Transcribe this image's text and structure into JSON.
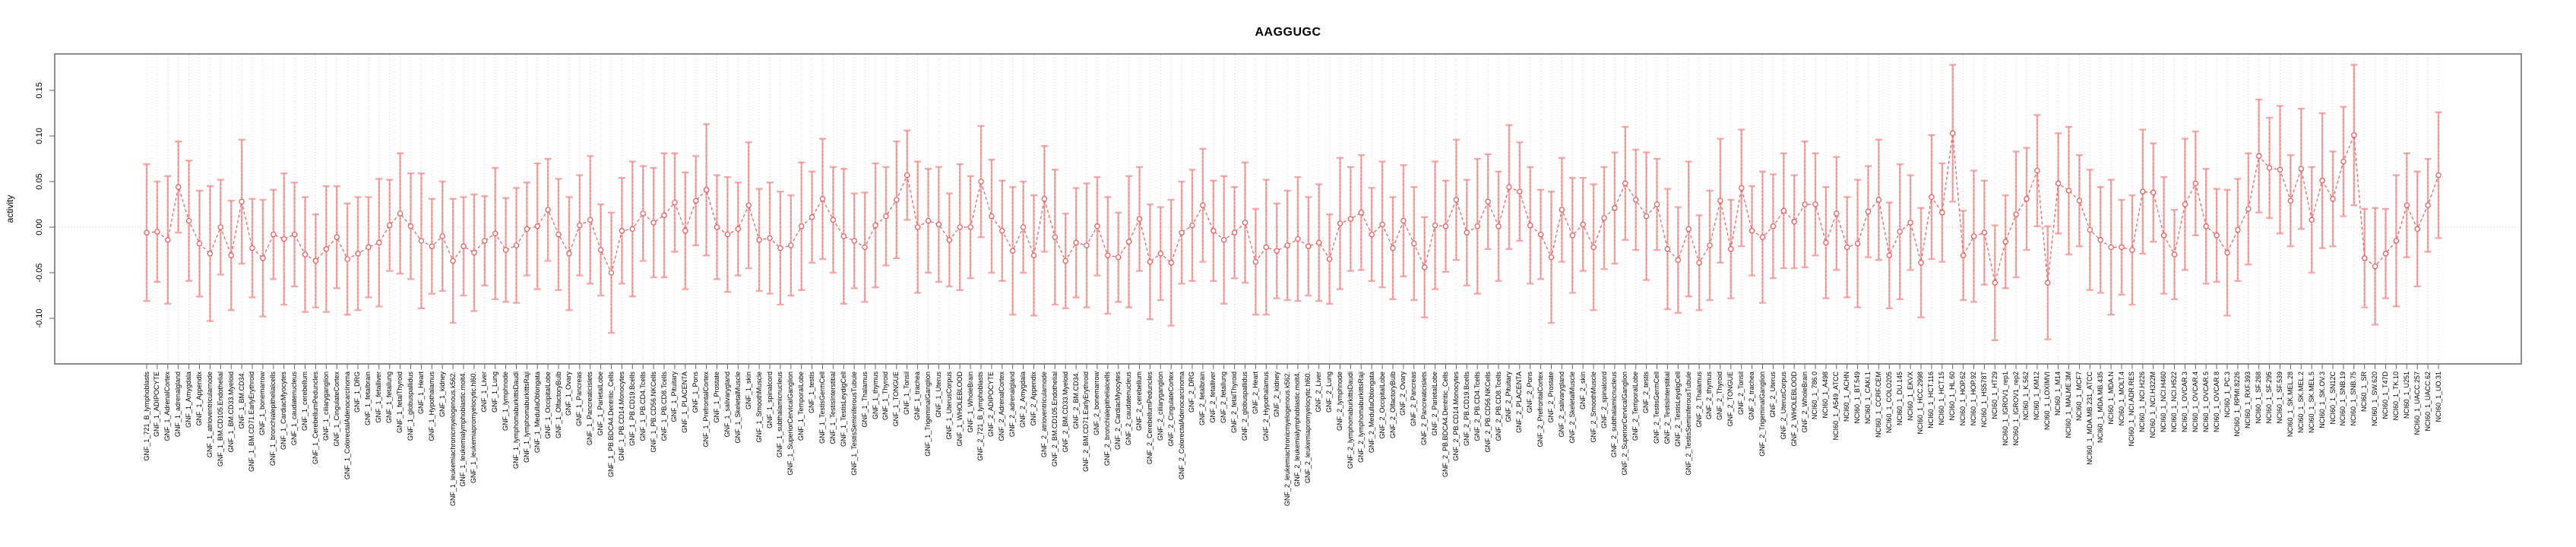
{
  "title": "AAGGUGC",
  "y_axis": {
    "label": "activity",
    "tick_labels": [
      "0.15",
      "0.10",
      "0.05",
      "0.00",
      "-0.05",
      "-0.10"
    ],
    "tick_values": [
      0.15,
      0.1,
      0.05,
      0.0,
      -0.05,
      -0.1
    ]
  },
  "colors": {
    "point": "#ef5f5f",
    "errorbar": "#f7a9a9",
    "grid": "#d9d9d9",
    "zero_line": "#cfcfcf",
    "box": "#8e8e8e",
    "tick": "#666666"
  },
  "chart_data": {
    "type": "line",
    "subtype": "points-with-error-bars",
    "title": "AAGGUGC",
    "xlabel": "",
    "ylabel": "activity",
    "ylim": [
      -0.15,
      0.19
    ],
    "yticks": [
      0.15,
      0.1,
      0.05,
      0.0,
      -0.05,
      -0.1
    ],
    "grid": "vertical dotted line per category; dotted horizontal line at 0",
    "legend": "none",
    "marker": "open-circle",
    "line_style": "dashed",
    "categories": [
      "GNF_1_721_B_lymphoblasts",
      "GNF_1_ADIPOCYTE",
      "GNF_1_AdrenalCortex",
      "GNF_1_adrenalgland",
      "GNF_1_Amygdala",
      "GNF_1_Appendix",
      "GNF_1_atrioventricularnode",
      "GNF_1_BM.CD105.Endothelial",
      "GNF_1_BM.CD33.Myeloid",
      "GNF_1_BM.CD34.",
      "GNF_1_BM.CD71.EarlyErythroid",
      "GNF_1_bonemarrow",
      "GNF_1_bronchialepithelialcells",
      "GNF_1_CardiacMyocytes",
      "GNF_1_caudatenucleus",
      "GNF_1_cerebellum",
      "GNF_1_CerebellumPeduncles",
      "GNF_1_ciliaryganglion",
      "GNF_1_CingulateCortex",
      "GNF_1_ColorectalAdenocarcinoma",
      "GNF_1_DRG",
      "GNF_1_fetalbrain",
      "GNF_1_fetalliver",
      "GNF_1_fetallung",
      "GNF_1_fetalThyroid",
      "GNF_1_globuspallidus",
      "GNF_1_Heart",
      "GNF_1_Hypothalamus",
      "GNF_1_kidney",
      "GNF_1_leukemiachronicmyelogenous.k562.",
      "GNF_1_leukemialymphoblastic.molt4.",
      "GNF_1_leukemiapromyelocytic.hl60.",
      "GNF_1_Liver",
      "GNF_1_Lung",
      "GNF_1_lymphnode",
      "GNF_1_lymphomaburkittsDaudi",
      "GNF_1_lymphomaburkittsRaji",
      "GNF_1_MedullaOblongata",
      "GNF_1_OccipitalLobe",
      "GNF_1_OlfactoryBulb",
      "GNF_1_Ovary",
      "GNF_1_Pancreas",
      "GNF_1_Pancreaticislets",
      "GNF_1_ParietalLobe",
      "GNF_1_PB.BDCA4.Dentritic_Cells",
      "GNF_1_PB.CD14.Monocytes",
      "GNF_1_PB.CD19.Bcells",
      "GNF_1_PB.CD4.Tcells",
      "GNF_1_PB.CD56.NKCells",
      "GNF_1_PB.CD8.Tcells",
      "GNF_1_Pituitary",
      "GNF_1_PLACENTA",
      "GNF_1_Pons",
      "GNF_1_PrefrontalCortex",
      "GNF_1_Prostate",
      "GNF_1_salivarygland",
      "GNF_1_SkeletalMuscle",
      "GNF_1_skin",
      "GNF_1_SmoothMuscle",
      "GNF_1_spinalcord",
      "GNF_1_subthalamicnucleus",
      "GNF_1_SuperiorCervicalGanglion",
      "GNF_1_TemporalLobe",
      "GNF_1_testis",
      "GNF_1_TestisGermCell",
      "GNF_1_TestisInterstitial",
      "GNF_1_TestisLeydigCell",
      "GNF_1_TestisSeminiferousTubule",
      "GNF_1_Thalamus",
      "GNF_1_thymus",
      "GNF_1_Thyroid",
      "GNF_1_TONGUE",
      "GNF_1_Tonsil",
      "GNF_1_trachea",
      "GNF_1_TrigeminalGanglion",
      "GNF_1_Uterus",
      "GNF_1_UterusCorpus",
      "GNF_1_WHOLEBLOOD",
      "GNF_1_WholeBrain",
      "GNF_2_721_B_lymphoblasts",
      "GNF_2_ADIPOCYTE",
      "GNF_2_AdrenalCortex",
      "GNF_2_adrenalgland",
      "GNF_2_Amygdala",
      "GNF_2_Appendix",
      "GNF_2_atrioventricularnode",
      "GNF_2_BM.CD105.Endothelial",
      "GNF_2_BM.CD33.Myeloid",
      "GNF_2_BM.CD34.",
      "GNF_2_BM.CD71.EarlyErythroid",
      "GNF_2_bonemarrow",
      "GNF_2_bronchialepithelialcells",
      "GNF_2_CardiacMyocytes",
      "GNF_2_caudatenucleus",
      "GNF_2_cerebellum",
      "GNF_2_CerebellumPeduncles",
      "GNF_2_ciliaryganglion",
      "GNF_2_CingulateCortex",
      "GNF_2_ColorectalAdenocarcinoma",
      "GNF_2_DRG",
      "GNF_2_fetalbrain",
      "GNF_2_fetalliver",
      "GNF_2_fetallung",
      "GNF_2_fetalThyroid",
      "GNF_2_globuspallidus",
      "GNF_2_Heart",
      "GNF_2_Hypothalamus",
      "GNF_2_kidney",
      "GNF_2_leukemiachronicmyelogenous.k562.",
      "GNF_2_leukemialymphoblastic.molt4.",
      "GNF_2_leukemiapromyelocytic.hl60.",
      "GNF_2_Liver",
      "GNF_2_Lung",
      "GNF_2_lymphnode",
      "GNF_2_lymphomaburkittsDaudi",
      "GNF_2_lymphomaburkittsRaji",
      "GNF_2_MedullaOblongata",
      "GNF_2_OccipitalLobe",
      "GNF_2_OlfactoryBulb",
      "GNF_2_Ovary",
      "GNF_2_Pancreas",
      "GNF_2_Pancreaticislets",
      "GNF_2_ParietalLobe",
      "GNF_2_PB.BDCA4.Dentritic_Cells",
      "GNF_2_PB.CD14.Monocytes",
      "GNF_2_PB.CD19.Bcells",
      "GNF_2_PB.CD4.Tcells",
      "GNF_2_PB.CD56.NKCells",
      "GNF_2_PB.CD8.Tcells",
      "GNF_2_Pituitary",
      "GNF_2_PLACENTA",
      "GNF_2_Pons",
      "GNF_2_PrefrontalCortex",
      "GNF_2_Prostate",
      "GNF_2_salivarygland",
      "GNF_2_SkeletalMuscle",
      "GNF_2_skin",
      "GNF_2_SmoothMuscle",
      "GNF_2_spinalcord",
      "GNF_2_subthalamicnucleus",
      "GNF_2_SuperiorCervicalGanglion",
      "GNF_2_TemporalLobe",
      "GNF_2_testis",
      "GNF_2_TestisGermCell",
      "GNF_2_TestisInterstitial",
      "GNF_2_TestisLeydigCell",
      "GNF_2_TestisSeminiferousTubule",
      "GNF_2_Thalamus",
      "GNF_2_thymus",
      "GNF_2_Thyroid",
      "GNF_2_TONGUE",
      "GNF_2_Tonsil",
      "GNF_2_trachea",
      "GNF_2_TrigeminalGanglion",
      "GNF_2_Uterus",
      "GNF_2_UterusCorpus",
      "GNF_2_WHOLEBLOOD",
      "GNF_2_WholeBrain",
      "NCI60_1_786.0",
      "NCI60_1_A498",
      "NCI60_1_A549_ATCC",
      "NCI60_1_ACHN",
      "NCI60_1_BT.549",
      "NCI60_1_CAKI.1",
      "NCI60_1_CCRF.CEM",
      "NCI60_1_COLO205",
      "NCI60_1_DU.145",
      "NCI60_1_EKVX",
      "NCI60_1_HCC.2998",
      "NCI60_1_HCT.116",
      "NCI60_1_HCT.15",
      "NCI60_1_HL.60",
      "NCI60_1_HOP.62",
      "NCI60_1_HOP.92",
      "NCI60_1_HS578T",
      "NCI60_1_HT29",
      "NCI60_1_IGROV1_rep1",
      "NCI60_1_IGROV1_rep2",
      "NCI60_1_K.562",
      "NCI60_1_KM12",
      "NCI60_1_LOXIMVI",
      "NCI60_1_M14",
      "NCI60_1_MALME.3M",
      "NCI60_1_MCF7",
      "NCI60_1_MDA.MB.231_ATCC",
      "NCI60_1_MDA.MB.435",
      "NCI60_1_MDA.N",
      "NCI60_1_MOLT.4",
      "NCI60_1_NCI.ADR.RES",
      "NCI60_1_NCI.H226",
      "NCI60_1_NCI.H322M",
      "NCI60_1_NCI.H460",
      "NCI60_1_NCI.H522",
      "NCI60_1_OVCAR.3",
      "NCI60_1_OVCAR.4",
      "NCI60_1_OVCAR.5",
      "NCI60_1_OVCAR.8",
      "NCI60_1_PC.3",
      "NCI60_1_RPMI.8226",
      "NCI60_1_RXF.393",
      "NCI60_1_SF.268",
      "NCI60_1_SF.295",
      "NCI60_1_SF.539",
      "NCI60_1_SK.MEL.28",
      "NCI60_1_SK.MEL.2",
      "NCI60_1_SK.MEL.5",
      "NCI60_1_SK.OV.3",
      "NCI60_1_SN12C",
      "NCI60_1_SNB.19",
      "NCI60_1_SNB.75",
      "NCI60_1_SR",
      "NCI60_1_SW.620",
      "NCI60_1_T47D",
      "NCI60_1_TK.10",
      "NCI60_1_U251",
      "NCI60_1_UACC.257",
      "NCI60_1_UACC.62",
      "NCI60_1_UO.31"
    ],
    "values": [
      -0.006,
      -0.005,
      -0.014,
      0.044,
      0.007,
      -0.018,
      -0.029,
      0.0,
      -0.031,
      0.028,
      -0.023,
      -0.034,
      -0.008,
      -0.013,
      -0.008,
      -0.03,
      -0.037,
      -0.024,
      -0.011,
      -0.035,
      -0.029,
      -0.022,
      -0.017,
      0.002,
      0.015,
      0.001,
      -0.015,
      -0.021,
      -0.01,
      -0.037,
      -0.021,
      -0.028,
      -0.015,
      -0.007,
      -0.025,
      -0.02,
      -0.002,
      0.001,
      0.019,
      -0.008,
      -0.029,
      0.002,
      0.008,
      -0.025,
      -0.05,
      -0.004,
      -0.002,
      0.015,
      0.005,
      0.013,
      0.027,
      -0.004,
      0.029,
      0.041,
      0.0,
      -0.008,
      -0.002,
      0.024,
      -0.014,
      -0.012,
      -0.023,
      -0.02,
      0.001,
      0.011,
      0.031,
      0.008,
      -0.01,
      -0.015,
      -0.022,
      0.002,
      0.012,
      0.03,
      0.057,
      0.0,
      0.007,
      0.003,
      -0.014,
      0.0,
      0.0,
      0.05,
      0.012,
      -0.004,
      -0.026,
      0.0,
      -0.031,
      0.031,
      -0.011,
      -0.037,
      -0.017,
      -0.02,
      0.001,
      -0.031,
      -0.033,
      -0.016,
      0.009,
      -0.038,
      -0.029,
      -0.039,
      -0.006,
      0.002,
      0.024,
      -0.004,
      -0.014,
      -0.006,
      0.005,
      -0.038,
      -0.022,
      -0.026,
      -0.02,
      -0.013,
      -0.021,
      -0.017,
      -0.035,
      0.004,
      0.009,
      0.016,
      -0.008,
      0.003,
      -0.023,
      0.007,
      -0.018,
      -0.044,
      0.002,
      0.001,
      0.03,
      -0.006,
      0.001,
      0.028,
      0.001,
      0.044,
      0.039,
      0.002,
      -0.008,
      -0.033,
      0.019,
      -0.009,
      0.003,
      -0.022,
      0.01,
      0.021,
      0.048,
      0.03,
      0.012,
      0.025,
      -0.024,
      -0.036,
      -0.002,
      -0.039,
      -0.02,
      0.029,
      -0.024,
      0.043,
      -0.004,
      -0.011,
      0.001,
      0.018,
      0.006,
      0.025,
      0.025,
      -0.017,
      0.015,
      -0.022,
      -0.018,
      0.017,
      0.03,
      -0.031,
      -0.005,
      0.005,
      -0.039,
      0.033,
      0.016,
      0.103,
      -0.031,
      -0.01,
      -0.006,
      -0.061,
      -0.016,
      0.014,
      0.031,
      0.062,
      -0.061,
      0.048,
      0.04,
      0.029,
      -0.003,
      -0.014,
      -0.022,
      -0.022,
      -0.025,
      0.039,
      0.038,
      -0.009,
      -0.03,
      0.025,
      0.048,
      0.001,
      -0.009,
      -0.028,
      -0.003,
      0.02,
      0.078,
      0.065,
      0.063,
      0.029,
      0.064,
      0.008,
      0.051,
      0.031,
      0.072,
      0.101,
      -0.034,
      -0.043,
      -0.029,
      -0.015,
      0.024,
      -0.002,
      0.024,
      0.057
    ],
    "errors": [
      0.075,
      0.055,
      0.07,
      0.05,
      0.066,
      0.058,
      0.074,
      0.052,
      0.06,
      0.068,
      0.054,
      0.064,
      0.049,
      0.072,
      0.057,
      0.063,
      0.051,
      0.069,
      0.056,
      0.061,
      0.062,
      0.055,
      0.07,
      0.05,
      0.066,
      0.058,
      0.074,
      0.052,
      0.06,
      0.068,
      0.054,
      0.064,
      0.049,
      0.072,
      0.057,
      0.063,
      0.051,
      0.069,
      0.056,
      0.061,
      0.062,
      0.055,
      0.07,
      0.05,
      0.066,
      0.058,
      0.074,
      0.052,
      0.06,
      0.068,
      0.054,
      0.064,
      0.049,
      0.072,
      0.057,
      0.063,
      0.051,
      0.069,
      0.056,
      0.061,
      0.062,
      0.055,
      0.07,
      0.05,
      0.066,
      0.058,
      0.074,
      0.052,
      0.06,
      0.068,
      0.054,
      0.064,
      0.049,
      0.072,
      0.057,
      0.063,
      0.051,
      0.069,
      0.056,
      0.061,
      0.062,
      0.055,
      0.07,
      0.05,
      0.066,
      0.058,
      0.074,
      0.052,
      0.06,
      0.068,
      0.054,
      0.064,
      0.049,
      0.072,
      0.057,
      0.063,
      0.051,
      0.069,
      0.056,
      0.061,
      0.062,
      0.055,
      0.07,
      0.05,
      0.066,
      0.058,
      0.074,
      0.052,
      0.06,
      0.068,
      0.054,
      0.064,
      0.049,
      0.072,
      0.057,
      0.063,
      0.051,
      0.069,
      0.056,
      0.061,
      0.062,
      0.055,
      0.07,
      0.05,
      0.066,
      0.058,
      0.074,
      0.052,
      0.06,
      0.068,
      0.054,
      0.064,
      0.049,
      0.072,
      0.057,
      0.063,
      0.051,
      0.069,
      0.056,
      0.061,
      0.062,
      0.055,
      0.07,
      0.05,
      0.066,
      0.058,
      0.074,
      0.052,
      0.06,
      0.068,
      0.054,
      0.064,
      0.049,
      0.072,
      0.057,
      0.063,
      0.051,
      0.069,
      0.056,
      0.061,
      0.062,
      0.055,
      0.07,
      0.05,
      0.066,
      0.058,
      0.074,
      0.052,
      0.06,
      0.068,
      0.054,
      0.075,
      0.049,
      0.072,
      0.057,
      0.063,
      0.051,
      0.069,
      0.056,
      0.061,
      0.062,
      0.055,
      0.07,
      0.05,
      0.066,
      0.058,
      0.074,
      0.052,
      0.06,
      0.068,
      0.054,
      0.064,
      0.049,
      0.072,
      0.057,
      0.063,
      0.051,
      0.069,
      0.056,
      0.061,
      0.062,
      0.055,
      0.07,
      0.05,
      0.066,
      0.058,
      0.074,
      0.052,
      0.06,
      0.077,
      0.054,
      0.064,
      0.049,
      0.072,
      0.057,
      0.063,
      0.051,
      0.069
    ]
  }
}
